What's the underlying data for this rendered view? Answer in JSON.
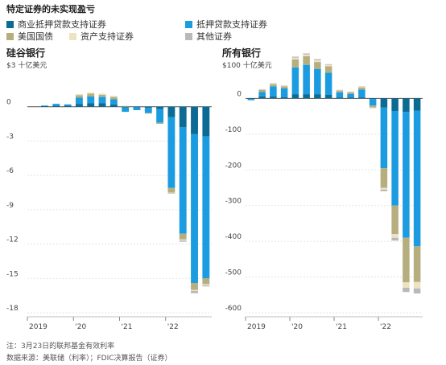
{
  "title": "特定证券的未实现盈亏",
  "legend": [
    {
      "label": "商业抵押贷款支持证券",
      "color": "#0b6b94"
    },
    {
      "label": "抵押贷款支持证券",
      "color": "#1b9ce0"
    },
    {
      "label": "美国国债",
      "color": "#b7ae80"
    },
    {
      "label": "资产支持证券",
      "color": "#ede3c2"
    },
    {
      "label": "其他证券",
      "color": "#b9b9b9"
    }
  ],
  "footnote": "注：3月23日的联邦基金有效利率",
  "source": "数据来源：美联储（利率）；FDIC决算报告（证券）",
  "chart_data": [
    {
      "type": "bar",
      "stacked": true,
      "title": "硅谷银行",
      "unit_label": "$3 十亿美元",
      "ylim": [
        -18,
        3
      ],
      "yticks": [
        0,
        -3,
        -6,
        -9,
        -12,
        -15,
        -18
      ],
      "ytick_labels": [
        "0",
        "-3",
        "-6",
        "-9",
        "-12",
        "-15",
        "-18"
      ],
      "xtick_labels": [
        "2019",
        "'20",
        "'21",
        "'22"
      ],
      "xtick_index": [
        0,
        4,
        8,
        12
      ],
      "categories": [
        "2019Q1",
        "2019Q2",
        "2019Q3",
        "2019Q4",
        "2020Q1",
        "2020Q2",
        "2020Q3",
        "2020Q4",
        "2021Q1",
        "2021Q2",
        "2021Q3",
        "2021Q4",
        "2022Q1",
        "2022Q2",
        "2022Q3",
        "2022Q4"
      ],
      "series": [
        {
          "name": "商业抵押贷款支持证券",
          "values": [
            0,
            0.05,
            0.1,
            0.1,
            0.25,
            0.3,
            0.3,
            0.2,
            -0.05,
            -0.05,
            -0.1,
            -0.2,
            -0.9,
            -1.8,
            -2.4,
            -2.6
          ]
        },
        {
          "name": "抵押贷款支持证券",
          "values": [
            0,
            0.05,
            0.15,
            0.1,
            0.55,
            0.6,
            0.55,
            0.45,
            -0.4,
            -0.25,
            -0.45,
            -1.2,
            -6.2,
            -9.3,
            -13.0,
            -12.4
          ]
        },
        {
          "name": "美国国债",
          "values": [
            0,
            0,
            0,
            0,
            0.2,
            0.25,
            0.2,
            0.2,
            0.05,
            0,
            -0.05,
            -0.1,
            -0.4,
            -0.5,
            -0.6,
            -0.5
          ]
        },
        {
          "name": "资产支持证券",
          "values": [
            0,
            0,
            0,
            0,
            0.1,
            0.1,
            0.1,
            0.1,
            0.05,
            0,
            0,
            0,
            -0.05,
            -0.1,
            -0.1,
            -0.1
          ]
        },
        {
          "name": "其他证券",
          "values": [
            0,
            0,
            0,
            0,
            0,
            0,
            0,
            0,
            0,
            0,
            0,
            0,
            -0.05,
            -0.1,
            -0.2,
            -0.1
          ]
        }
      ]
    },
    {
      "type": "bar",
      "stacked": true,
      "title": "所有银行",
      "unit_label": "$100 十亿美元",
      "ylim": [
        -600,
        100
      ],
      "yticks": [
        0,
        -100,
        -200,
        -300,
        -400,
        -500,
        -600
      ],
      "ytick_labels": [
        "0",
        "-100",
        "-200",
        "-300",
        "-400",
        "-500",
        "-600"
      ],
      "xtick_labels": [
        "2019",
        "'20",
        "'21",
        "'22"
      ],
      "xtick_index": [
        0,
        4,
        8,
        12
      ],
      "categories": [
        "2019Q1",
        "2019Q2",
        "2019Q3",
        "2019Q4",
        "2020Q1",
        "2020Q2",
        "2020Q3",
        "2020Q4",
        "2021Q1",
        "2021Q2",
        "2021Q3",
        "2021Q4",
        "2022Q1",
        "2022Q2",
        "2022Q3",
        "2022Q4"
      ],
      "series": [
        {
          "name": "商业抵押贷款支持证券",
          "values": [
            -2,
            6,
            6,
            4,
            12,
            12,
            12,
            10,
            3,
            3,
            3,
            -2,
            -25,
            -35,
            -38,
            -34
          ]
        },
        {
          "name": "抵押贷款支持证券",
          "values": [
            -3,
            12,
            28,
            24,
            75,
            82,
            70,
            62,
            14,
            10,
            22,
            -18,
            -170,
            -265,
            -352,
            -380
          ]
        },
        {
          "name": "美国国债",
          "values": [
            0,
            6,
            6,
            6,
            22,
            24,
            20,
            18,
            5,
            4,
            6,
            -5,
            -55,
            -80,
            -125,
            -100
          ]
        },
        {
          "name": "资产支持证券",
          "values": [
            0,
            1,
            2,
            1,
            5,
            5,
            5,
            4,
            1,
            1,
            2,
            -1,
            -5,
            -10,
            -15,
            -18
          ]
        },
        {
          "name": "其他证券",
          "values": [
            0,
            1,
            1,
            1,
            3,
            3,
            3,
            2,
            1,
            1,
            1,
            -1,
            -5,
            -8,
            -12,
            -14
          ]
        }
      ]
    }
  ]
}
